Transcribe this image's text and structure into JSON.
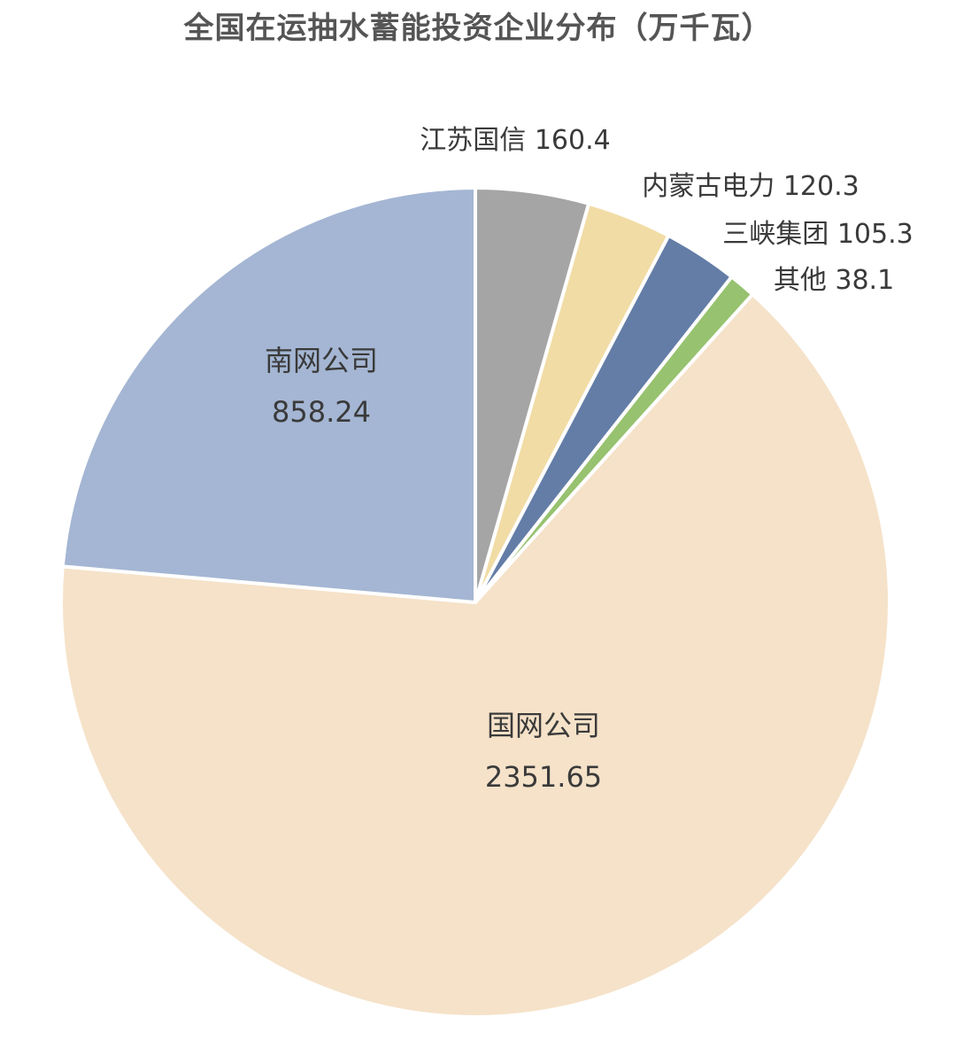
{
  "chart_data": {
    "type": "pie",
    "title": "全国在运抽水蓄能投资企业分布（万千瓦）",
    "slices": [
      {
        "name": "国网公司",
        "value": 2351.65,
        "color": "#F5E2C9",
        "label_style": "inside"
      },
      {
        "name": "南网公司",
        "value": 858.24,
        "color": "#A4B6D3",
        "label_style": "inside"
      },
      {
        "name": "江苏国信",
        "value": 160.4,
        "color": "#A5A5A5",
        "label_style": "outside"
      },
      {
        "name": "内蒙古电力",
        "value": 120.3,
        "color": "#F1DCA5",
        "label_style": "outside"
      },
      {
        "name": "三峡集团",
        "value": 105.3,
        "color": "#637DA6",
        "label_style": "outside"
      },
      {
        "name": "其他",
        "value": 38.1,
        "color": "#97C26F",
        "label_style": "outside"
      }
    ],
    "legend": "none",
    "start_direction": "top",
    "order": "clockwise from top: 江苏国信, 内蒙古电力, 三峡集团, 其他, 国网公司, 南网公司"
  }
}
